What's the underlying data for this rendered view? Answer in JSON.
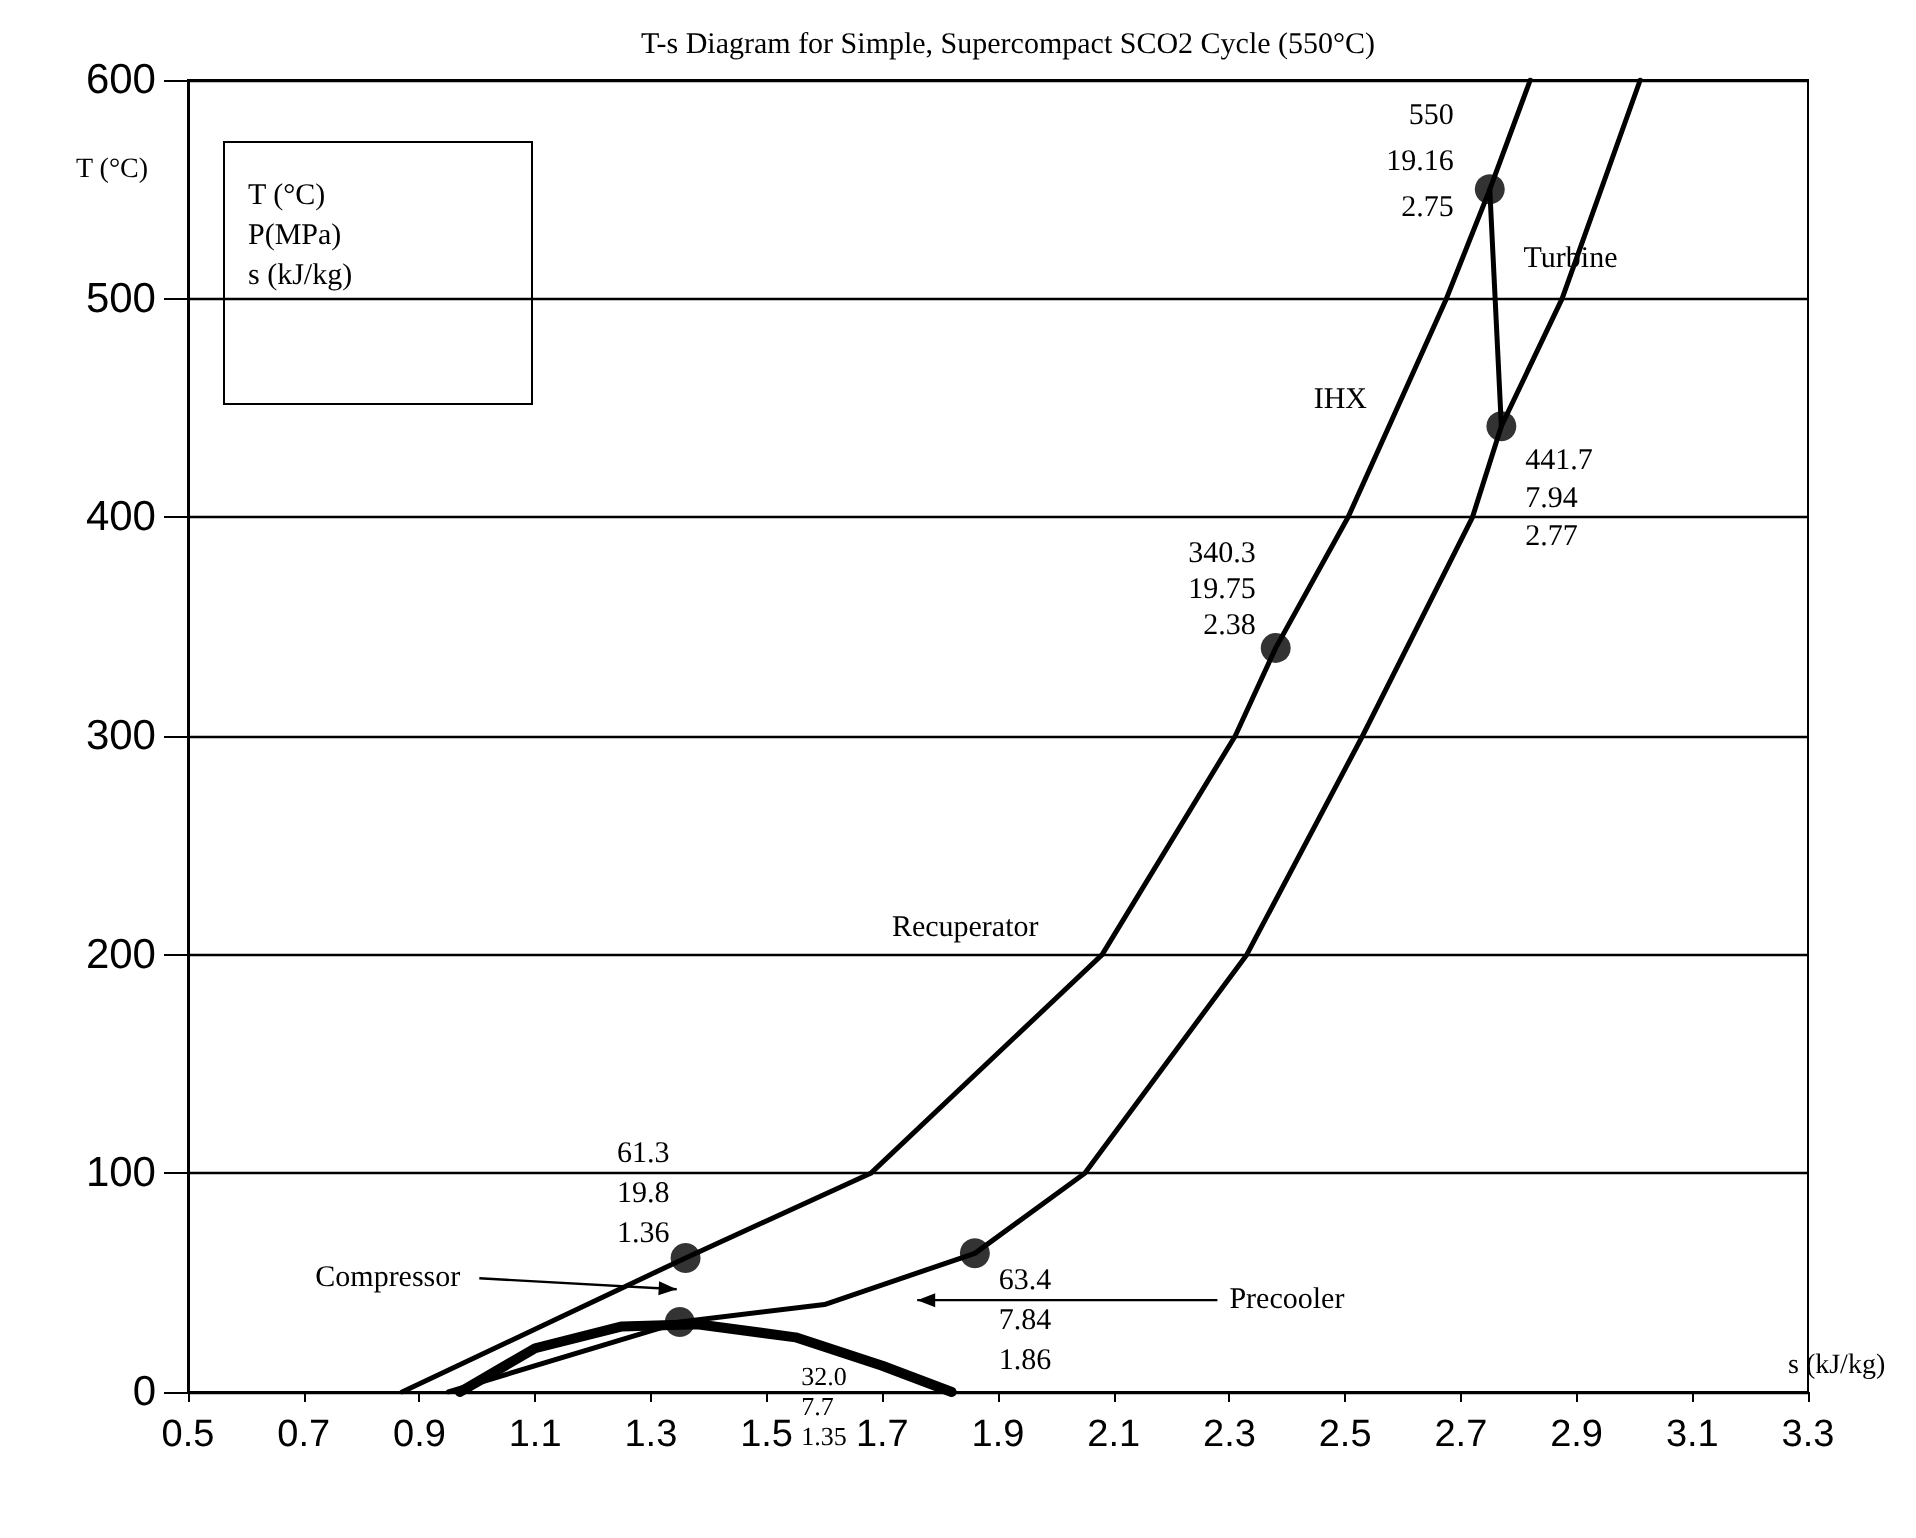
{
  "chart_data": {
    "type": "line",
    "title": "T-s Diagram for Simple, Supercompact SCO2 Cycle (550°C)",
    "xlabel": "s (kJ/kg)",
    "ylabel": "T (°C)",
    "xlim": [
      0.5,
      3.3
    ],
    "ylim": [
      0,
      600
    ],
    "xticks": [
      0.5,
      0.7,
      0.9,
      1.1,
      1.3,
      1.5,
      1.7,
      1.9,
      2.1,
      2.3,
      2.5,
      2.7,
      2.9,
      3.1,
      3.3
    ],
    "yticks": [
      0,
      100,
      200,
      300,
      400,
      500,
      600
    ],
    "grid": "y",
    "series": [
      {
        "type": "line",
        "marker": "none",
        "color": "#000000",
        "x": [
          0.87,
          1.36,
          1.68,
          2.08,
          2.31,
          2.38,
          2.505,
          2.675,
          2.75,
          2.82
        ],
        "values": [
          0,
          61.3,
          100,
          200,
          300,
          340.3,
          400,
          500,
          550,
          600
        ]
      },
      {
        "type": "line",
        "marker": "none",
        "color": "#000000",
        "x": [
          0.95,
          1.35,
          1.6,
          1.86,
          2.05,
          2.33,
          2.53,
          2.72,
          2.77,
          2.875,
          3.01
        ],
        "values": [
          0,
          32.0,
          40,
          63.4,
          100,
          200,
          300,
          400,
          441.7,
          500,
          600
        ]
      },
      {
        "type": "line",
        "marker": "none",
        "color": "#000000",
        "x": [
          2.75,
          2.77
        ],
        "values": [
          550,
          441.7
        ]
      },
      {
        "type": "line",
        "marker": "none",
        "color": "#000000",
        "x": [
          0.97,
          1.1,
          1.25,
          1.38,
          1.55,
          1.7,
          1.82
        ],
        "values": [
          0,
          20,
          30,
          31,
          25,
          12,
          0
        ]
      },
      {
        "type": "scatter",
        "marker": "circle",
        "color": "#000000",
        "x": [
          1.36,
          1.35,
          1.86,
          2.38,
          2.75,
          2.77
        ],
        "values": [
          61.3,
          32.0,
          63.4,
          340.3,
          550,
          441.7
        ]
      }
    ],
    "annotations": [
      "T (°C)\nP(MPa)\ns (kJ/kg)",
      {
        "text": "61.3\n19.8\n1.36",
        "x": 1.36,
        "y": 61.3
      },
      "32.0\n7.7\n1.35",
      {
        "text": "63.4\n7.84\n1.86",
        "x": 1.86,
        "y": 63.4
      },
      {
        "text": "340.3\n19.75\n2.38",
        "x": 2.38,
        "y": 340.3
      },
      {
        "text": "550\n19.16\n2.75",
        "x": 2.75,
        "y": 550
      },
      {
        "text": "441.7\n7.94\n2.77",
        "x": 2.77,
        "y": 441.7
      },
      {
        "text": "Turbine",
        "x": 2.76,
        "y": 500
      },
      {
        "text": "IHX",
        "x": 2.6,
        "y": 450
      },
      "Recuperator",
      "Compressor",
      "Precooler"
    ]
  }
}
